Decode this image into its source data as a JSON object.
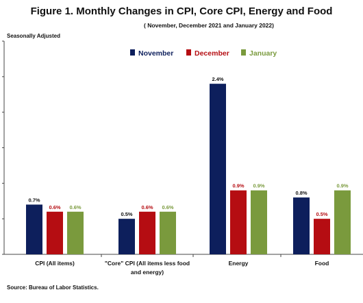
{
  "chart_data": {
    "type": "bar",
    "title": "Figure 1. Monthly Changes in CPI, Core CPI, Energy and Food",
    "subtitle": "( November, December 2021 and January 2022)",
    "note": "Seasonally Adjusted",
    "source": "Source: Bureau of Labor Statistics.",
    "categories": [
      [
        "CPI (All items)"
      ],
      [
        "\"Core\" CPI (All items less food",
        "and energy)"
      ],
      [
        "Energy"
      ],
      [
        "Food"
      ]
    ],
    "series": [
      {
        "name": "November",
        "color": "#0d1f5c",
        "values": [
          0.7,
          0.5,
          2.4,
          0.8
        ],
        "labels": [
          "0.7%",
          "0.5%",
          "2.4%",
          "0.8%"
        ]
      },
      {
        "name": "December",
        "color": "#b50d12",
        "values": [
          0.6,
          0.6,
          0.9,
          0.5
        ],
        "labels": [
          "0.6%",
          "0.6%",
          "0.9%",
          "0.5%"
        ]
      },
      {
        "name": "January",
        "color": "#7a9a3d",
        "values": [
          0.6,
          0.6,
          0.9,
          0.9
        ],
        "labels": [
          "0.6%",
          "0.6%",
          "0.9%",
          "0.9%"
        ]
      }
    ],
    "ylim": [
      0,
      3.0
    ],
    "legend_position": "top",
    "grid": false
  }
}
